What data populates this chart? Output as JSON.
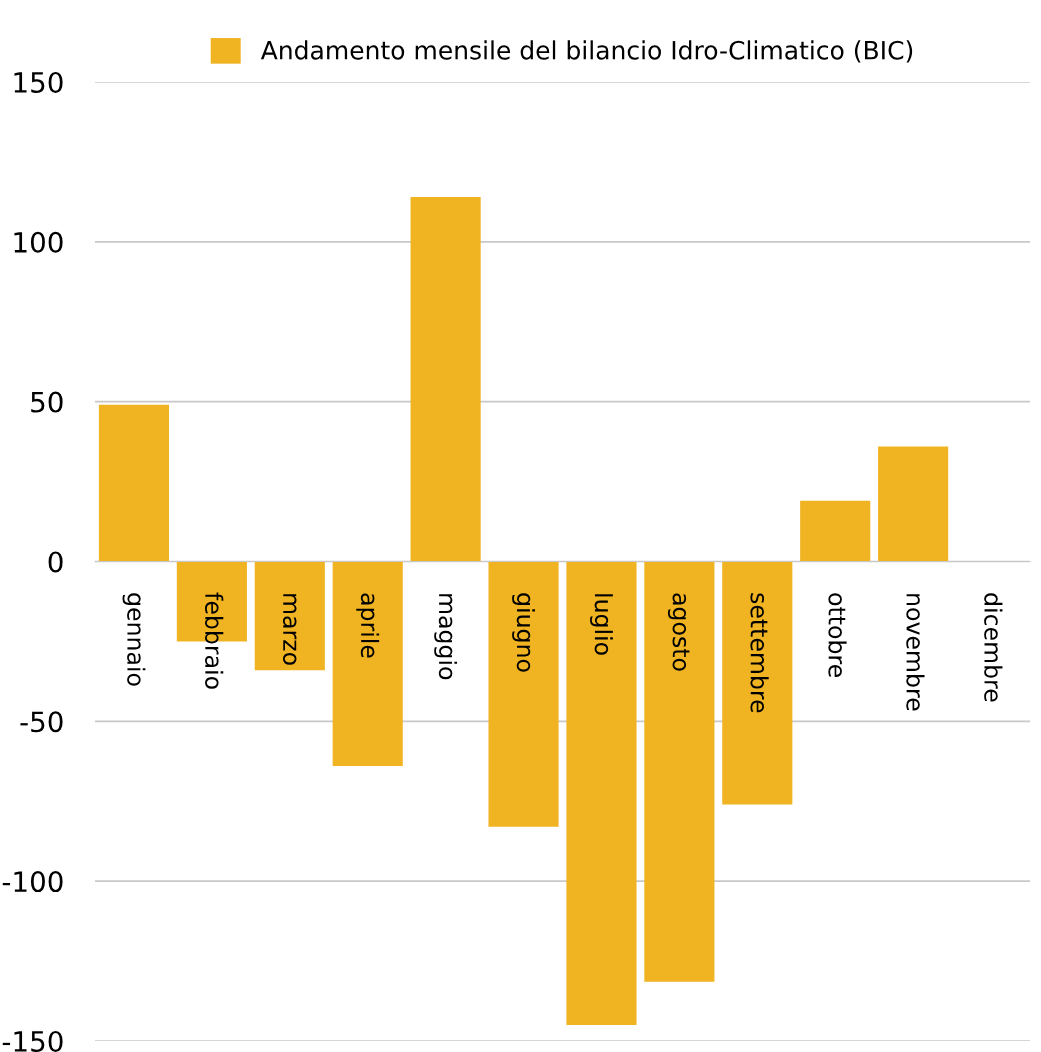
{
  "chart_data": {
    "type": "bar",
    "categories": [
      "gennaio",
      "febbraio",
      "marzo",
      "aprile",
      "maggio",
      "giugno",
      "luglio",
      "agosto",
      "settembre",
      "ottobre",
      "novembre",
      "dicembre"
    ],
    "series": [
      {
        "name": "Andamento mensile del bilancio Idro-Climatico (BIC)",
        "color": "#f0b321",
        "values": [
          49,
          -25,
          -34,
          -64,
          114,
          -83,
          -145,
          -131.5,
          -76,
          19,
          36,
          0
        ]
      }
    ],
    "ylim": [
      -150,
      150
    ],
    "yticks": [
      -150,
      -100,
      -50,
      0,
      50,
      100,
      150
    ],
    "grid": "y",
    "legend": "top"
  }
}
